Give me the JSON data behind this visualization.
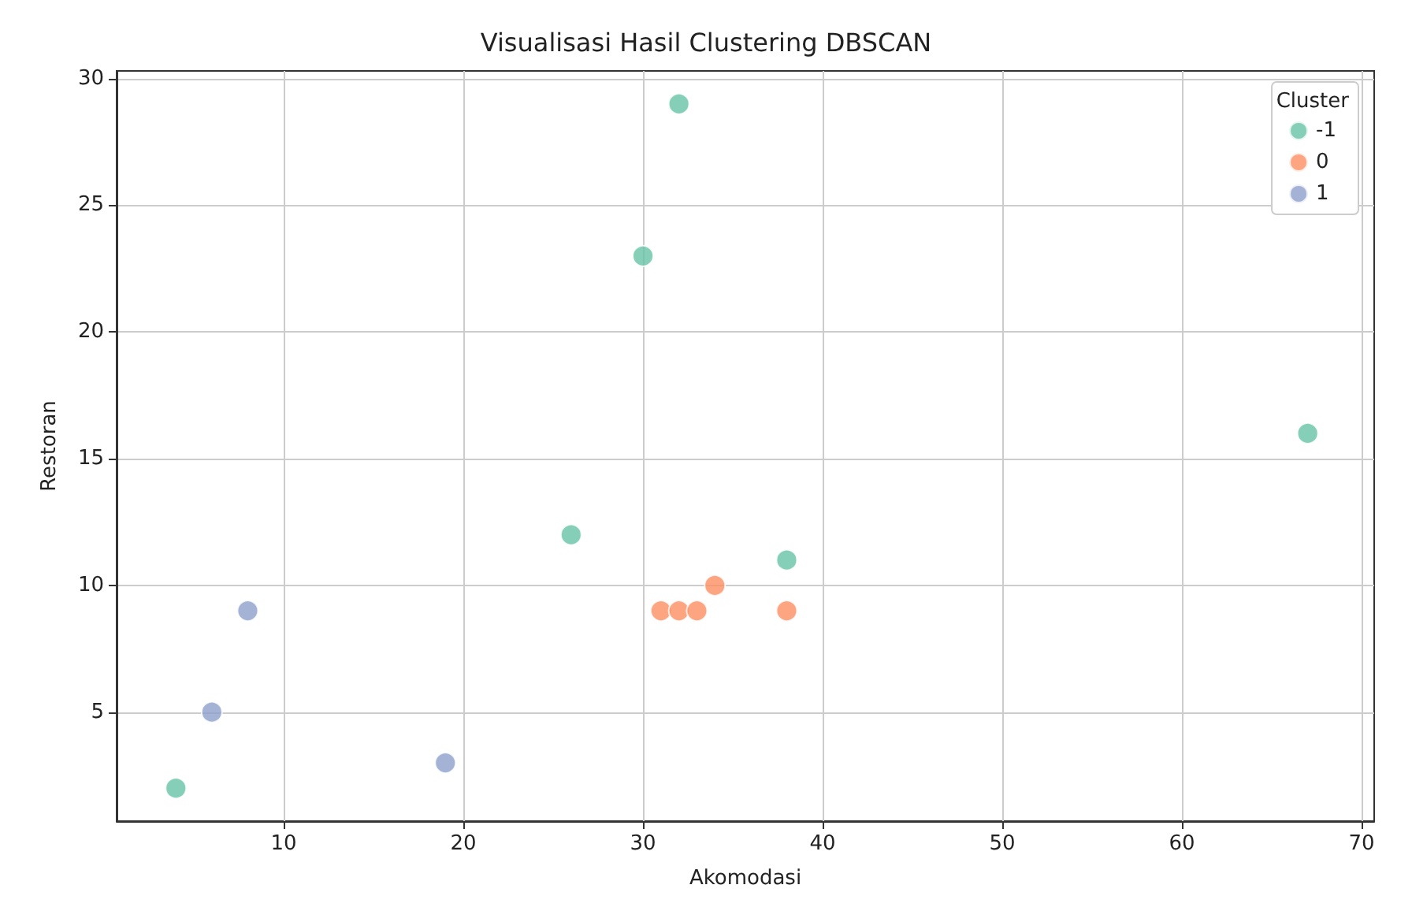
{
  "chart_data": {
    "type": "scatter",
    "title": "Visualisasi Hasil Clustering DBSCAN",
    "xlabel": "Akomodasi",
    "ylabel": "Restoran",
    "legend_title": "Cluster",
    "series": [
      {
        "name": "-1",
        "color": "#66c2a5",
        "x": [
          4,
          26,
          30,
          32,
          38,
          67
        ],
        "values": [
          2,
          12,
          23,
          29,
          11,
          16
        ]
      },
      {
        "name": "0",
        "color": "#fc8d62",
        "x": [
          31,
          32,
          33,
          34,
          38
        ],
        "values": [
          9,
          9,
          9,
          10,
          9
        ]
      },
      {
        "name": "1",
        "color": "#8da0cb",
        "x": [
          6,
          8,
          19
        ],
        "values": [
          5,
          9,
          3
        ]
      }
    ],
    "xlim": [
      0.7,
      70.7
    ],
    "xticks": [
      10,
      20,
      30,
      40,
      50,
      60,
      70
    ],
    "ylim": [
      0.7,
      30.3
    ],
    "yticks": [
      5,
      10,
      15,
      20,
      25,
      30
    ],
    "grid": true,
    "legend": "top right",
    "marker": "circle"
  }
}
